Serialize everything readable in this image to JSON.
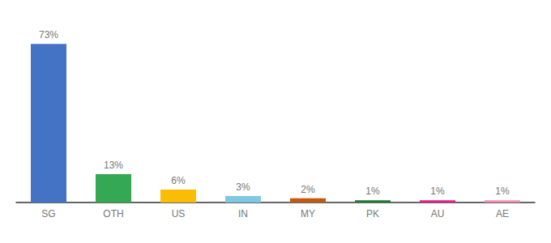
{
  "chart_data": {
    "type": "bar",
    "categories": [
      "SG",
      "OTH",
      "US",
      "IN",
      "MY",
      "PK",
      "AU",
      "AE"
    ],
    "values": [
      73,
      13,
      6,
      3,
      2,
      1,
      1,
      1
    ],
    "value_labels": [
      "73%",
      "13%",
      "6%",
      "3%",
      "2%",
      "1%",
      "1%",
      "1%"
    ],
    "colors": [
      "#4472C4",
      "#34A853",
      "#FBBC04",
      "#7EC8E3",
      "#C65911",
      "#1E7B34",
      "#E91E8C",
      "#F48FB1"
    ],
    "ylim": [
      0,
      82
    ],
    "data_labels": true,
    "tick_labels": "x",
    "grid": false
  }
}
